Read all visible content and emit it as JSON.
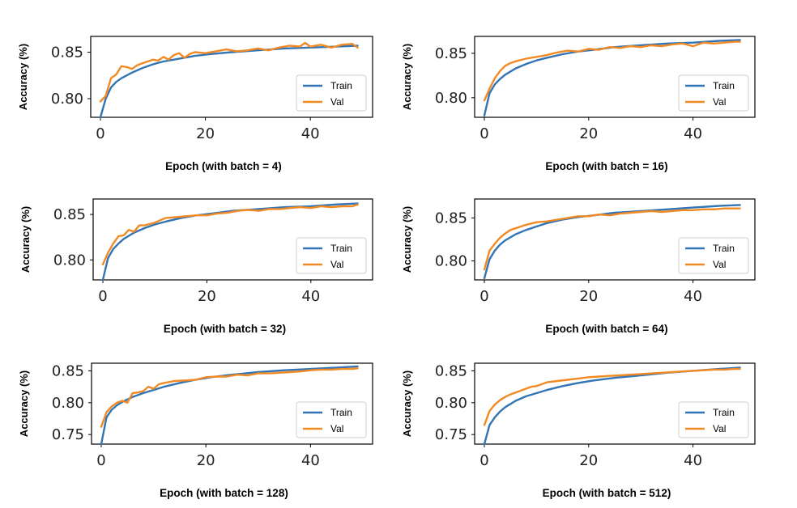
{
  "colors": {
    "train": "#3274b4",
    "val": "#f28a24"
  },
  "chart_data": [
    {
      "type": "line",
      "xlabel": "Epoch (with batch = 4)",
      "ylabel": "Accuracy (%)",
      "xlim": [
        0,
        50
      ],
      "ylim": [
        0.78,
        0.867
      ],
      "xticks": [
        0,
        20,
        40
      ],
      "yticks": [
        0.8,
        0.85
      ],
      "ytick_labels": [
        "0.80",
        "0.85"
      ],
      "legend": "lower-right",
      "series": [
        {
          "name": "Train",
          "x": [
            0,
            1,
            2,
            3,
            4,
            6,
            8,
            10,
            12,
            15,
            18,
            21,
            25,
            30,
            35,
            40,
            45,
            49
          ],
          "y": [
            0.78,
            0.8,
            0.812,
            0.818,
            0.822,
            0.828,
            0.833,
            0.837,
            0.84,
            0.843,
            0.846,
            0.848,
            0.85,
            0.852,
            0.854,
            0.855,
            0.856,
            0.857
          ]
        },
        {
          "name": "Val",
          "x": [
            0,
            1,
            2,
            3,
            4,
            5,
            6,
            7,
            8,
            9,
            10,
            11,
            12,
            13,
            14,
            15,
            16,
            17,
            18,
            20,
            22,
            24,
            26,
            28,
            30,
            32,
            34,
            36,
            38,
            39,
            40,
            42,
            44,
            46,
            48,
            49
          ],
          "y": [
            0.797,
            0.803,
            0.822,
            0.826,
            0.835,
            0.834,
            0.832,
            0.836,
            0.838,
            0.84,
            0.842,
            0.841,
            0.845,
            0.842,
            0.847,
            0.849,
            0.844,
            0.848,
            0.85,
            0.849,
            0.851,
            0.853,
            0.851,
            0.852,
            0.854,
            0.852,
            0.855,
            0.857,
            0.856,
            0.86,
            0.856,
            0.858,
            0.855,
            0.858,
            0.859,
            0.855
          ]
        }
      ]
    },
    {
      "type": "line",
      "xlabel": "Epoch (with batch = 16)",
      "ylabel": "Accuracy (%)",
      "xlim": [
        0,
        50
      ],
      "ylim": [
        0.778,
        0.869
      ],
      "xticks": [
        0,
        20,
        40
      ],
      "yticks": [
        0.8,
        0.85
      ],
      "ytick_labels": [
        "0.80",
        "0.85"
      ],
      "legend": "lower-right",
      "series": [
        {
          "name": "Train",
          "x": [
            0,
            1,
            2,
            3,
            4,
            6,
            8,
            10,
            12,
            15,
            18,
            21,
            25,
            30,
            35,
            40,
            45,
            49
          ],
          "y": [
            0.78,
            0.805,
            0.815,
            0.821,
            0.826,
            0.833,
            0.838,
            0.842,
            0.845,
            0.849,
            0.852,
            0.854,
            0.857,
            0.859,
            0.861,
            0.862,
            0.864,
            0.865
          ]
        },
        {
          "name": "Val",
          "x": [
            0,
            1,
            2,
            3,
            4,
            5,
            6,
            8,
            10,
            12,
            14,
            16,
            18,
            20,
            22,
            24,
            26,
            28,
            30,
            32,
            34,
            36,
            38,
            40,
            42,
            44,
            46,
            48,
            49
          ],
          "y": [
            0.797,
            0.81,
            0.822,
            0.83,
            0.836,
            0.839,
            0.841,
            0.844,
            0.846,
            0.848,
            0.851,
            0.853,
            0.852,
            0.855,
            0.854,
            0.857,
            0.856,
            0.858,
            0.857,
            0.859,
            0.858,
            0.86,
            0.861,
            0.858,
            0.862,
            0.861,
            0.862,
            0.863,
            0.863
          ]
        }
      ]
    },
    {
      "type": "line",
      "xlabel": "Epoch (with batch = 32)",
      "ylabel": "Accuracy (%)",
      "xlim": [
        0,
        50
      ],
      "ylim": [
        0.778,
        0.867
      ],
      "xticks": [
        0,
        20,
        40
      ],
      "yticks": [
        0.8,
        0.85
      ],
      "ytick_labels": [
        "0.80",
        "0.85"
      ],
      "legend": "lower-right",
      "series": [
        {
          "name": "Train",
          "x": [
            0,
            1,
            2,
            3,
            4,
            6,
            8,
            10,
            12,
            15,
            18,
            21,
            25,
            30,
            35,
            40,
            45,
            49
          ],
          "y": [
            0.778,
            0.802,
            0.812,
            0.818,
            0.823,
            0.83,
            0.835,
            0.839,
            0.842,
            0.846,
            0.849,
            0.851,
            0.854,
            0.856,
            0.858,
            0.859,
            0.861,
            0.862
          ]
        },
        {
          "name": "Val",
          "x": [
            0,
            1,
            2,
            3,
            4,
            5,
            6,
            7,
            8,
            10,
            12,
            14,
            16,
            18,
            20,
            22,
            24,
            26,
            28,
            30,
            32,
            34,
            36,
            38,
            40,
            42,
            44,
            46,
            48,
            49
          ],
          "y": [
            0.795,
            0.808,
            0.818,
            0.826,
            0.827,
            0.833,
            0.831,
            0.838,
            0.838,
            0.841,
            0.846,
            0.847,
            0.848,
            0.849,
            0.849,
            0.851,
            0.852,
            0.854,
            0.855,
            0.854,
            0.856,
            0.856,
            0.857,
            0.858,
            0.857,
            0.859,
            0.858,
            0.859,
            0.859,
            0.861
          ]
        }
      ]
    },
    {
      "type": "line",
      "xlabel": "Epoch (with batch = 64)",
      "ylabel": "Accuracy (%)",
      "xlim": [
        0,
        50
      ],
      "ylim": [
        0.778,
        0.872
      ],
      "xticks": [
        0,
        20,
        40
      ],
      "yticks": [
        0.8,
        0.85
      ],
      "ytick_labels": [
        "0.80",
        "0.85"
      ],
      "legend": "lower-right",
      "series": [
        {
          "name": "Train",
          "x": [
            0,
            1,
            2,
            3,
            4,
            6,
            8,
            10,
            12,
            15,
            18,
            21,
            25,
            30,
            35,
            40,
            45,
            49
          ],
          "y": [
            0.78,
            0.802,
            0.812,
            0.819,
            0.824,
            0.831,
            0.836,
            0.84,
            0.844,
            0.848,
            0.851,
            0.853,
            0.856,
            0.858,
            0.86,
            0.862,
            0.864,
            0.865
          ]
        },
        {
          "name": "Val",
          "x": [
            0,
            1,
            2,
            3,
            4,
            5,
            6,
            8,
            10,
            12,
            14,
            16,
            18,
            20,
            22,
            24,
            26,
            28,
            30,
            32,
            34,
            36,
            38,
            40,
            42,
            44,
            46,
            48,
            49
          ],
          "y": [
            0.79,
            0.812,
            0.82,
            0.827,
            0.832,
            0.836,
            0.838,
            0.842,
            0.845,
            0.846,
            0.848,
            0.85,
            0.852,
            0.852,
            0.854,
            0.853,
            0.855,
            0.856,
            0.857,
            0.858,
            0.857,
            0.858,
            0.859,
            0.859,
            0.86,
            0.86,
            0.861,
            0.861,
            0.861
          ]
        }
      ]
    },
    {
      "type": "line",
      "xlabel": "Epoch (with batch = 128)",
      "ylabel": "Accuracy (%)",
      "xlim": [
        0,
        50
      ],
      "ylim": [
        0.735,
        0.862
      ],
      "xticks": [
        0,
        20,
        40
      ],
      "yticks": [
        0.75,
        0.8,
        0.85
      ],
      "ytick_labels": [
        "0.75",
        "0.80",
        "0.85"
      ],
      "legend": "lower-right",
      "series": [
        {
          "name": "Train",
          "x": [
            0,
            1,
            2,
            3,
            4,
            6,
            8,
            10,
            12,
            15,
            18,
            21,
            25,
            30,
            35,
            40,
            45,
            49
          ],
          "y": [
            0.735,
            0.777,
            0.789,
            0.796,
            0.801,
            0.809,
            0.815,
            0.82,
            0.825,
            0.831,
            0.836,
            0.84,
            0.844,
            0.848,
            0.851,
            0.853,
            0.855,
            0.857
          ]
        },
        {
          "name": "Val",
          "x": [
            0,
            1,
            2,
            3,
            4,
            5,
            6,
            7,
            8,
            9,
            10,
            11,
            12,
            14,
            16,
            18,
            20,
            22,
            24,
            26,
            28,
            30,
            32,
            34,
            36,
            38,
            40,
            42,
            44,
            46,
            48,
            49
          ],
          "y": [
            0.762,
            0.785,
            0.794,
            0.8,
            0.803,
            0.8,
            0.815,
            0.816,
            0.818,
            0.825,
            0.822,
            0.829,
            0.831,
            0.834,
            0.835,
            0.836,
            0.84,
            0.841,
            0.841,
            0.844,
            0.843,
            0.846,
            0.846,
            0.847,
            0.848,
            0.849,
            0.851,
            0.852,
            0.852,
            0.853,
            0.853,
            0.854
          ]
        }
      ]
    },
    {
      "type": "line",
      "xlabel": "Epoch (with batch = 512)",
      "ylabel": "Accuracy (%)",
      "xlim": [
        0,
        50
      ],
      "ylim": [
        0.735,
        0.862
      ],
      "xticks": [
        0,
        20,
        40
      ],
      "yticks": [
        0.75,
        0.8,
        0.85
      ],
      "ytick_labels": [
        "0.75",
        "0.80",
        "0.85"
      ],
      "legend": "lower-right",
      "series": [
        {
          "name": "Train",
          "x": [
            0,
            1,
            2,
            3,
            4,
            6,
            8,
            10,
            12,
            15,
            18,
            21,
            25,
            30,
            35,
            40,
            45,
            49
          ],
          "y": [
            0.735,
            0.765,
            0.777,
            0.786,
            0.793,
            0.803,
            0.81,
            0.815,
            0.82,
            0.826,
            0.831,
            0.835,
            0.839,
            0.843,
            0.847,
            0.85,
            0.853,
            0.855
          ]
        },
        {
          "name": "Val",
          "x": [
            0,
            1,
            2,
            3,
            4,
            5,
            6,
            7,
            8,
            9,
            10,
            11,
            12,
            14,
            16,
            18,
            20,
            22,
            24,
            26,
            28,
            30,
            32,
            34,
            36,
            38,
            40,
            42,
            44,
            46,
            48,
            49
          ],
          "y": [
            0.765,
            0.787,
            0.797,
            0.804,
            0.809,
            0.813,
            0.816,
            0.819,
            0.822,
            0.825,
            0.826,
            0.829,
            0.832,
            0.834,
            0.836,
            0.838,
            0.84,
            0.841,
            0.842,
            0.843,
            0.844,
            0.845,
            0.846,
            0.847,
            0.848,
            0.849,
            0.85,
            0.851,
            0.852,
            0.852,
            0.853,
            0.853
          ]
        }
      ]
    }
  ]
}
